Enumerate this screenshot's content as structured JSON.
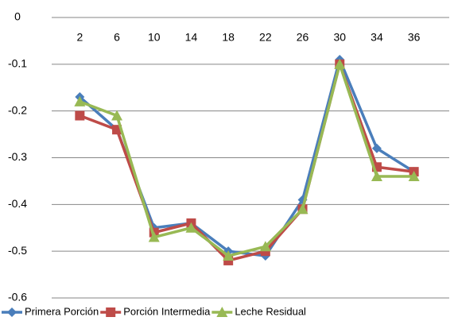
{
  "chart_data": {
    "type": "line",
    "categories": [
      "2",
      "6",
      "10",
      "14",
      "18",
      "22",
      "26",
      "30",
      "34",
      "36"
    ],
    "series": [
      {
        "name": "Primera Porción",
        "color": "#4a7ebb",
        "marker": "diamond",
        "values": [
          -0.17,
          -0.24,
          -0.45,
          -0.44,
          -0.5,
          -0.51,
          -0.39,
          -0.09,
          -0.28,
          -0.33
        ]
      },
      {
        "name": "Porción Intermedia",
        "color": "#be4b48",
        "marker": "square",
        "values": [
          -0.21,
          -0.24,
          -0.46,
          -0.44,
          -0.52,
          -0.5,
          -0.41,
          -0.1,
          -0.32,
          -0.33
        ]
      },
      {
        "name": "Leche Residual",
        "color": "#98b954",
        "marker": "triangle",
        "values": [
          -0.18,
          -0.21,
          -0.47,
          -0.45,
          -0.51,
          -0.49,
          -0.41,
          -0.1,
          -0.34,
          -0.34
        ]
      }
    ],
    "ylim": [
      -0.6,
      0
    ],
    "yticks": [
      0,
      -0.1,
      -0.2,
      -0.3,
      -0.4,
      -0.5,
      -0.6
    ],
    "grid": true,
    "legend": "bottom"
  }
}
